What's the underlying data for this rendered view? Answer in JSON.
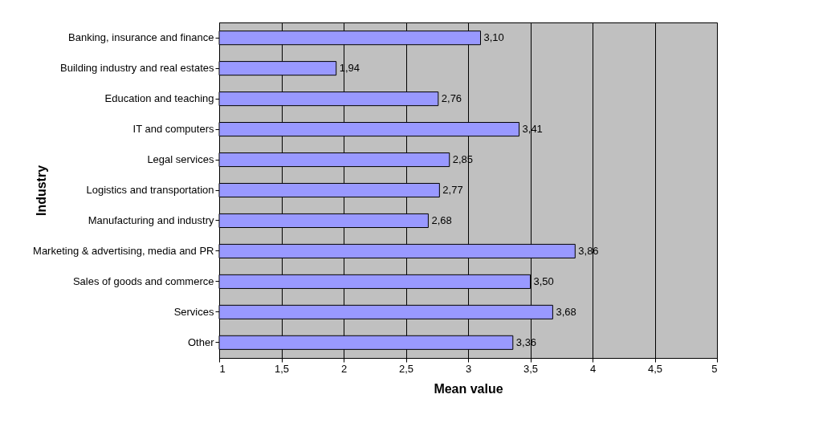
{
  "chart_data": {
    "type": "bar",
    "orientation": "horizontal",
    "xlabel": "Mean value",
    "ylabel": "Industry",
    "categories": [
      "Banking, insurance and finance",
      "Building industry and real estates",
      "Education and teaching",
      "IT and computers",
      "Legal services",
      "Logistics and transportation",
      "Manufacturing and industry",
      "Marketing & advertising, media and PR",
      "Sales of goods and commerce",
      "Services",
      "Other"
    ],
    "values": [
      3.1,
      1.94,
      2.76,
      3.41,
      2.85,
      2.77,
      2.68,
      3.86,
      3.5,
      3.68,
      3.36
    ],
    "value_labels": [
      "3,10",
      "1,94",
      "2,76",
      "3,41",
      "2,85",
      "2,77",
      "2,68",
      "3,86",
      "3,50",
      "3,68",
      "3,36"
    ],
    "color": "#9999ff",
    "xlim": [
      1,
      5
    ],
    "xticks": [
      1,
      {
        "value": 1.5,
        "label": "1,5"
      },
      2,
      {
        "value": 2.5,
        "label": "2,5"
      },
      3,
      {
        "value": 3.5,
        "label": "3,5"
      },
      4,
      {
        "value": 4.5,
        "label": "4,5"
      },
      5
    ],
    "grid": "x"
  }
}
